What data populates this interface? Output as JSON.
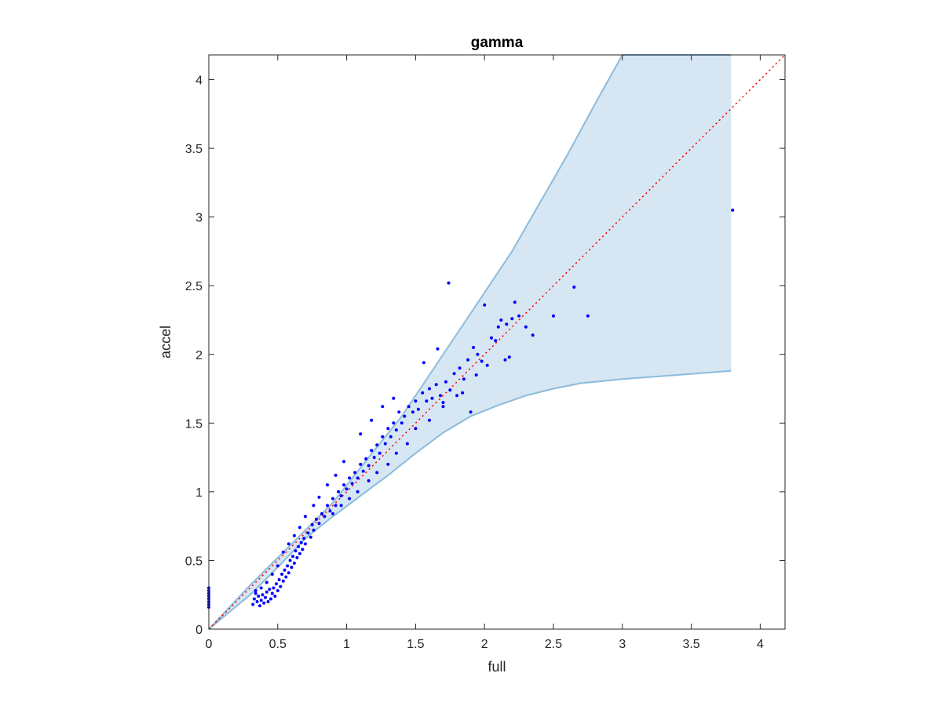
{
  "chart_data": {
    "type": "scatter",
    "title": "gamma",
    "xlabel": "full",
    "ylabel": "accel",
    "xlim": [
      0,
      4.18
    ],
    "ylim": [
      0,
      4.18
    ],
    "xticks": [
      0,
      0.5,
      1,
      1.5,
      2,
      2.5,
      3,
      3.5,
      4
    ],
    "xtick_labels": [
      "0",
      "0.5",
      "1",
      "1.5",
      "2",
      "2.5",
      "3",
      "3.5",
      "4"
    ],
    "yticks": [
      0,
      0.5,
      1,
      1.5,
      2,
      2.5,
      3,
      3.5,
      4
    ],
    "ytick_labels": [
      "0",
      "0.5",
      "1",
      "1.5",
      "2",
      "2.5",
      "3",
      "3.5",
      "4"
    ],
    "grid": false,
    "colors": {
      "points": "#0000ff",
      "band_fill": "#d6e6f3",
      "band_edge": "#8bbbdc",
      "reference_line": "#ff0000",
      "axes": "#262626"
    },
    "band": {
      "upper": [
        [
          0,
          0
        ],
        [
          0.3,
          0.32
        ],
        [
          0.6,
          0.62
        ],
        [
          0.9,
          0.92
        ],
        [
          1.2,
          1.3
        ],
        [
          1.4,
          1.55
        ],
        [
          1.6,
          1.85
        ],
        [
          1.8,
          2.15
        ],
        [
          2.0,
          2.45
        ],
        [
          2.2,
          2.75
        ],
        [
          2.4,
          3.1
        ],
        [
          2.6,
          3.45
        ],
        [
          2.8,
          3.82
        ],
        [
          3.0,
          4.18
        ],
        [
          3.79,
          4.18
        ]
      ],
      "lower": [
        [
          0,
          0
        ],
        [
          0.3,
          0.25
        ],
        [
          0.5,
          0.45
        ],
        [
          0.7,
          0.66
        ],
        [
          0.9,
          0.82
        ],
        [
          1.1,
          0.97
        ],
        [
          1.3,
          1.12
        ],
        [
          1.5,
          1.28
        ],
        [
          1.7,
          1.43
        ],
        [
          1.9,
          1.55
        ],
        [
          2.1,
          1.63
        ],
        [
          2.3,
          1.7
        ],
        [
          2.5,
          1.75
        ],
        [
          2.7,
          1.79
        ],
        [
          3.0,
          1.82
        ],
        [
          3.4,
          1.85
        ],
        [
          3.79,
          1.88
        ]
      ]
    },
    "reference_line": [
      [
        0,
        0
      ],
      [
        4.18,
        4.18
      ]
    ],
    "series": [
      {
        "points": [
          [
            0,
            0.16
          ],
          [
            0,
            0.18
          ],
          [
            0,
            0.2
          ],
          [
            0,
            0.22
          ],
          [
            0,
            0.24
          ],
          [
            0,
            0.26
          ],
          [
            0,
            0.28
          ],
          [
            0,
            0.3
          ],
          [
            0.32,
            0.18
          ],
          [
            0.33,
            0.22
          ],
          [
            0.34,
            0.26
          ],
          [
            0.35,
            0.2
          ],
          [
            0.36,
            0.24
          ],
          [
            0.37,
            0.17
          ],
          [
            0.38,
            0.21
          ],
          [
            0.39,
            0.25
          ],
          [
            0.4,
            0.19
          ],
          [
            0.41,
            0.23
          ],
          [
            0.42,
            0.27
          ],
          [
            0.43,
            0.2
          ],
          [
            0.44,
            0.29
          ],
          [
            0.45,
            0.22
          ],
          [
            0.46,
            0.26
          ],
          [
            0.47,
            0.3
          ],
          [
            0.48,
            0.24
          ],
          [
            0.49,
            0.33
          ],
          [
            0.5,
            0.28
          ],
          [
            0.51,
            0.36
          ],
          [
            0.52,
            0.31
          ],
          [
            0.53,
            0.4
          ],
          [
            0.54,
            0.35
          ],
          [
            0.55,
            0.43
          ],
          [
            0.56,
            0.38
          ],
          [
            0.57,
            0.46
          ],
          [
            0.58,
            0.41
          ],
          [
            0.59,
            0.5
          ],
          [
            0.6,
            0.45
          ],
          [
            0.61,
            0.53
          ],
          [
            0.62,
            0.48
          ],
          [
            0.63,
            0.57
          ],
          [
            0.64,
            0.52
          ],
          [
            0.65,
            0.6
          ],
          [
            0.66,
            0.55
          ],
          [
            0.67,
            0.63
          ],
          [
            0.68,
            0.58
          ],
          [
            0.69,
            0.66
          ],
          [
            0.7,
            0.62
          ],
          [
            0.72,
            0.7
          ],
          [
            0.74,
            0.67
          ],
          [
            0.75,
            0.76
          ],
          [
            0.76,
            0.72
          ],
          [
            0.78,
            0.8
          ],
          [
            0.8,
            0.77
          ],
          [
            0.82,
            0.84
          ],
          [
            0.84,
            0.82
          ],
          [
            0.86,
            0.9
          ],
          [
            0.88,
            0.86
          ],
          [
            0.9,
            0.95
          ],
          [
            0.92,
            0.9
          ],
          [
            0.94,
            1.0
          ],
          [
            0.96,
            0.97
          ],
          [
            0.98,
            1.05
          ],
          [
            1.0,
            1.02
          ],
          [
            1.02,
            1.1
          ],
          [
            1.04,
            1.06
          ],
          [
            1.06,
            1.14
          ],
          [
            1.08,
            1.1
          ],
          [
            1.1,
            1.2
          ],
          [
            1.12,
            1.15
          ],
          [
            1.14,
            1.24
          ],
          [
            1.16,
            1.19
          ],
          [
            1.18,
            1.3
          ],
          [
            1.2,
            1.25
          ],
          [
            1.22,
            1.34
          ],
          [
            1.24,
            1.28
          ],
          [
            1.26,
            1.4
          ],
          [
            1.28,
            1.35
          ],
          [
            1.3,
            1.46
          ],
          [
            1.32,
            1.4
          ],
          [
            1.34,
            1.5
          ],
          [
            1.36,
            1.45
          ],
          [
            1.38,
            1.58
          ],
          [
            1.4,
            1.5
          ],
          [
            1.42,
            1.55
          ],
          [
            1.45,
            1.62
          ],
          [
            1.48,
            1.58
          ],
          [
            1.5,
            1.66
          ],
          [
            1.52,
            1.6
          ],
          [
            1.55,
            1.72
          ],
          [
            1.58,
            1.66
          ],
          [
            1.6,
            1.75
          ],
          [
            1.62,
            1.68
          ],
          [
            1.65,
            1.78
          ],
          [
            1.68,
            1.7
          ],
          [
            1.7,
            1.62
          ],
          [
            1.72,
            1.8
          ],
          [
            1.75,
            1.74
          ],
          [
            1.78,
            1.86
          ],
          [
            1.8,
            1.7
          ],
          [
            1.82,
            1.9
          ],
          [
            1.85,
            1.82
          ],
          [
            1.88,
            1.96
          ],
          [
            1.9,
            1.58
          ],
          [
            1.92,
            2.05
          ],
          [
            1.95,
            2.0
          ],
          [
            1.98,
            1.95
          ],
          [
            2.0,
            2.36
          ],
          [
            2.05,
            2.12
          ],
          [
            2.1,
            2.2
          ],
          [
            2.12,
            2.25
          ],
          [
            2.15,
            1.96
          ],
          [
            2.18,
            1.98
          ],
          [
            2.2,
            2.26
          ],
          [
            2.25,
            2.28
          ],
          [
            2.3,
            2.2
          ],
          [
            2.35,
            2.14
          ],
          [
            2.5,
            2.28
          ],
          [
            2.65,
            2.49
          ],
          [
            2.75,
            2.28
          ],
          [
            1.74,
            2.52
          ],
          [
            1.66,
            2.04
          ],
          [
            1.56,
            1.94
          ],
          [
            2.22,
            2.38
          ],
          [
            3.8,
            3.05
          ],
          [
            1.34,
            1.68
          ],
          [
            1.26,
            1.62
          ],
          [
            1.18,
            1.52
          ],
          [
            1.1,
            1.42
          ],
          [
            0.98,
            1.22
          ],
          [
            0.92,
            1.12
          ],
          [
            0.86,
            1.05
          ],
          [
            0.8,
            0.96
          ],
          [
            0.76,
            0.9
          ],
          [
            0.7,
            0.82
          ],
          [
            0.66,
            0.74
          ],
          [
            0.62,
            0.68
          ],
          [
            0.58,
            0.62
          ],
          [
            0.54,
            0.56
          ],
          [
            0.5,
            0.46
          ],
          [
            0.46,
            0.4
          ],
          [
            0.42,
            0.34
          ],
          [
            0.38,
            0.3
          ],
          [
            0.34,
            0.28
          ],
          [
            1.44,
            1.35
          ],
          [
            1.36,
            1.28
          ],
          [
            1.3,
            1.2
          ],
          [
            1.22,
            1.14
          ],
          [
            1.16,
            1.08
          ],
          [
            1.08,
            1.0
          ],
          [
            1.02,
            0.95
          ],
          [
            0.96,
            0.9
          ],
          [
            0.9,
            0.84
          ],
          [
            1.6,
            1.52
          ],
          [
            1.7,
            1.65
          ],
          [
            1.84,
            1.72
          ],
          [
            1.94,
            1.85
          ],
          [
            2.02,
            1.92
          ],
          [
            2.08,
            2.1
          ],
          [
            2.16,
            2.22
          ],
          [
            1.5,
            1.46
          ]
        ]
      }
    ]
  }
}
